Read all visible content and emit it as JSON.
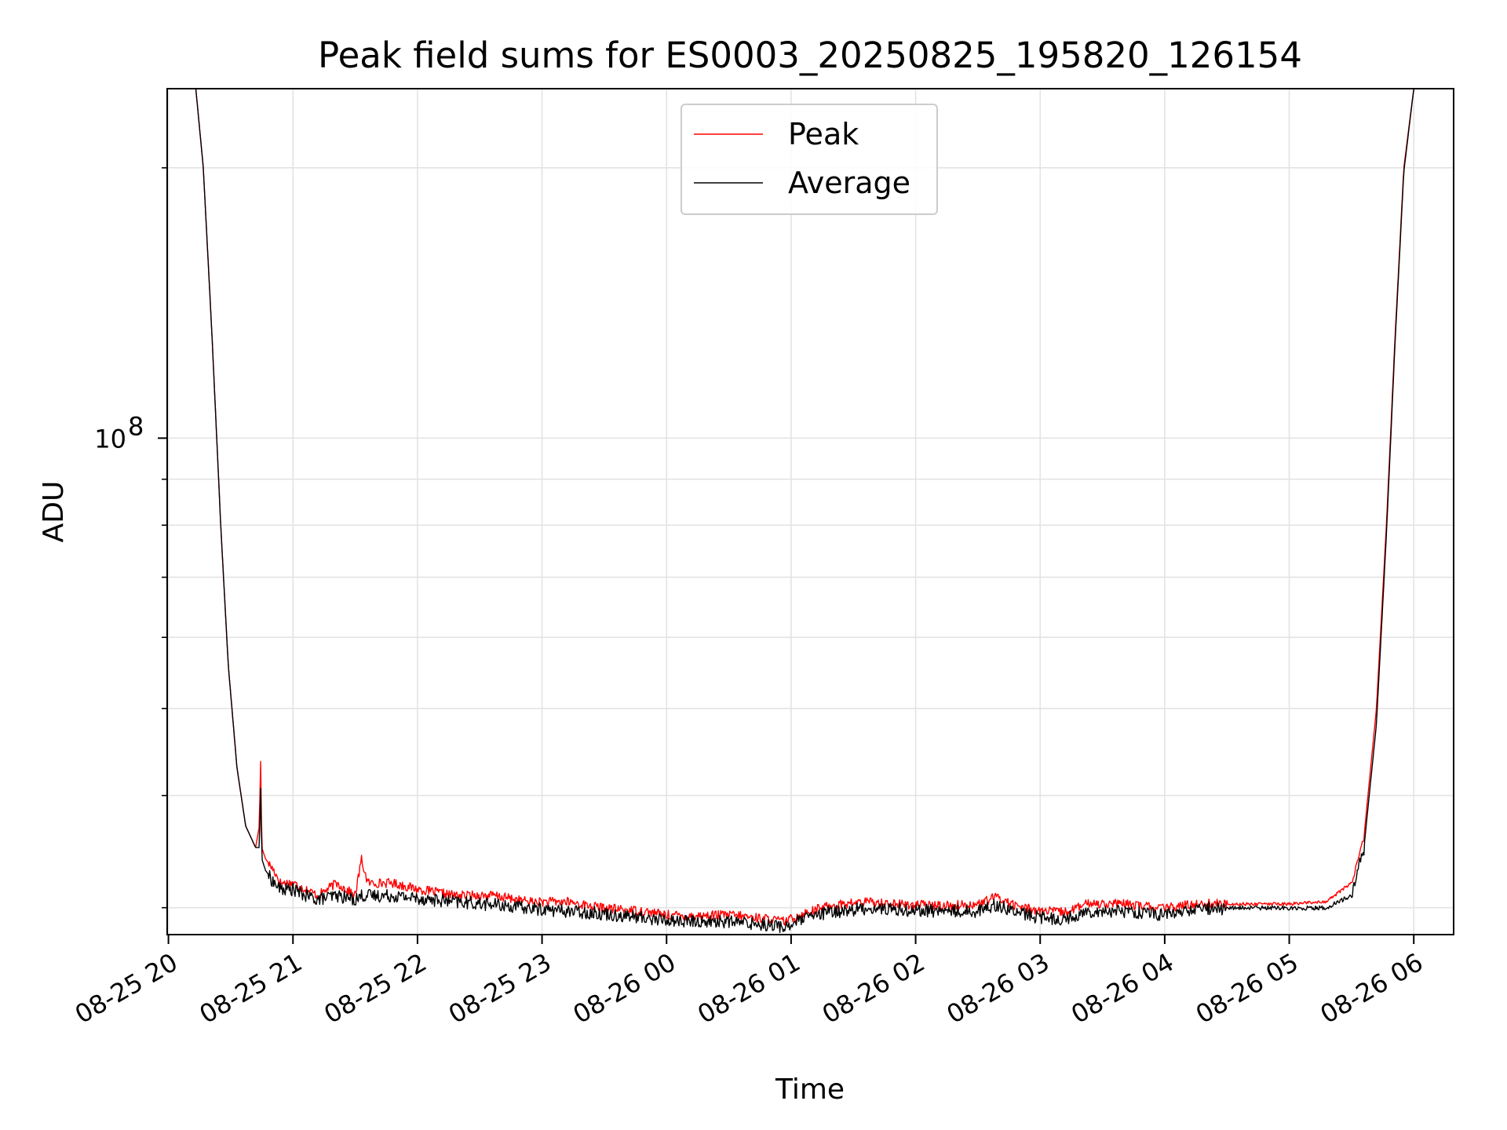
{
  "chart_data": {
    "type": "line",
    "title": "Peak field sums for ES0003_20250825_195820_126154",
    "xlabel": "Time",
    "ylabel": "ADU",
    "x_tick_labels": [
      "08-25 20",
      "08-25 21",
      "08-25 22",
      "08-25 23",
      "08-26 00",
      "08-26 01",
      "08-26 02",
      "08-26 03",
      "08-26 04",
      "08-26 05",
      "08-26 06"
    ],
    "x_tick_hours": [
      20,
      21,
      22,
      23,
      24,
      25,
      26,
      27,
      28,
      29,
      30
    ],
    "x_range_hours": [
      19.99,
      30.32
    ],
    "y_scale": "log",
    "y_range": [
      28000000,
      245000000
    ],
    "y_major_ticks": [
      {
        "value": 100000000,
        "label_base": "10",
        "label_exp": "8"
      }
    ],
    "y_minor_ticks": [
      30000000,
      40000000,
      50000000,
      60000000,
      70000000,
      80000000,
      90000000,
      200000000
    ],
    "grid": true,
    "legend_position": "upper center",
    "series": [
      {
        "name": "Peak",
        "color": "#ff0000",
        "x_hours": [
          20.22,
          20.28,
          20.35,
          20.42,
          20.48,
          20.55,
          20.62,
          20.7,
          20.73,
          20.74,
          20.75,
          20.78,
          20.85,
          20.9,
          21.0,
          21.1,
          21.2,
          21.35,
          21.5,
          21.55,
          21.6,
          21.8,
          22.0,
          22.3,
          22.6,
          22.9,
          23.2,
          23.5,
          23.8,
          24.0,
          24.2,
          24.5,
          24.8,
          24.95,
          25.1,
          25.3,
          25.6,
          25.9,
          26.2,
          26.5,
          26.65,
          26.8,
          27.0,
          27.2,
          27.4,
          27.7,
          28.0,
          28.3,
          28.5,
          28.7,
          29.0,
          29.3,
          29.5,
          29.6,
          29.7,
          29.78,
          29.85,
          29.92,
          30.0,
          30.08,
          30.1
        ],
        "values": [
          245000000,
          200000000,
          130000000,
          80000000,
          56000000,
          43000000,
          37000000,
          35000000,
          37000000,
          44000000,
          35000000,
          34000000,
          33000000,
          32000000,
          32000000,
          31500000,
          31000000,
          32000000,
          31000000,
          34000000,
          32000000,
          32000000,
          31500000,
          31000000,
          31000000,
          30500000,
          30500000,
          30000000,
          29800000,
          29500000,
          29400000,
          29500000,
          29200000,
          29000000,
          29600000,
          30200000,
          30500000,
          30300000,
          30200000,
          30300000,
          30900000,
          30200000,
          29800000,
          29700000,
          30400000,
          30300000,
          30000000,
          30400000,
          30300000,
          30300000,
          30300000,
          30500000,
          32000000,
          36000000,
          50000000,
          80000000,
          130000000,
          200000000,
          245000000,
          245000000,
          245000000
        ]
      },
      {
        "name": "Average",
        "color": "#000000",
        "x_hours": [
          20.22,
          20.28,
          20.35,
          20.42,
          20.48,
          20.55,
          20.62,
          20.7,
          20.73,
          20.74,
          20.75,
          20.78,
          20.85,
          20.9,
          21.0,
          21.1,
          21.2,
          21.35,
          21.5,
          21.55,
          21.6,
          21.8,
          22.0,
          22.3,
          22.6,
          22.9,
          23.2,
          23.5,
          23.8,
          24.0,
          24.2,
          24.5,
          24.8,
          24.95,
          25.1,
          25.3,
          25.6,
          25.9,
          26.2,
          26.5,
          26.65,
          26.8,
          27.0,
          27.2,
          27.4,
          27.7,
          28.0,
          28.3,
          28.5,
          28.7,
          29.0,
          29.3,
          29.5,
          29.6,
          29.7,
          29.78,
          29.85,
          29.92,
          30.0,
          30.08,
          30.1
        ],
        "values": [
          245000000,
          200000000,
          130000000,
          80000000,
          56000000,
          43000000,
          37000000,
          35000000,
          35000000,
          41000000,
          34000000,
          33000000,
          32000000,
          31500000,
          31500000,
          31000000,
          30700000,
          31000000,
          30700000,
          31000000,
          31000000,
          31000000,
          30800000,
          30500000,
          30300000,
          30000000,
          29800000,
          29600000,
          29300000,
          29100000,
          29000000,
          29000000,
          28800000,
          28600000,
          29200000,
          29700000,
          30000000,
          29900000,
          29800000,
          29800000,
          30300000,
          29700000,
          29300000,
          29200000,
          29800000,
          29800000,
          29500000,
          30000000,
          30000000,
          30000000,
          30000000,
          30000000,
          31000000,
          35000000,
          48000000,
          78000000,
          128000000,
          198000000,
          245000000,
          245000000,
          245000000
        ]
      }
    ]
  }
}
